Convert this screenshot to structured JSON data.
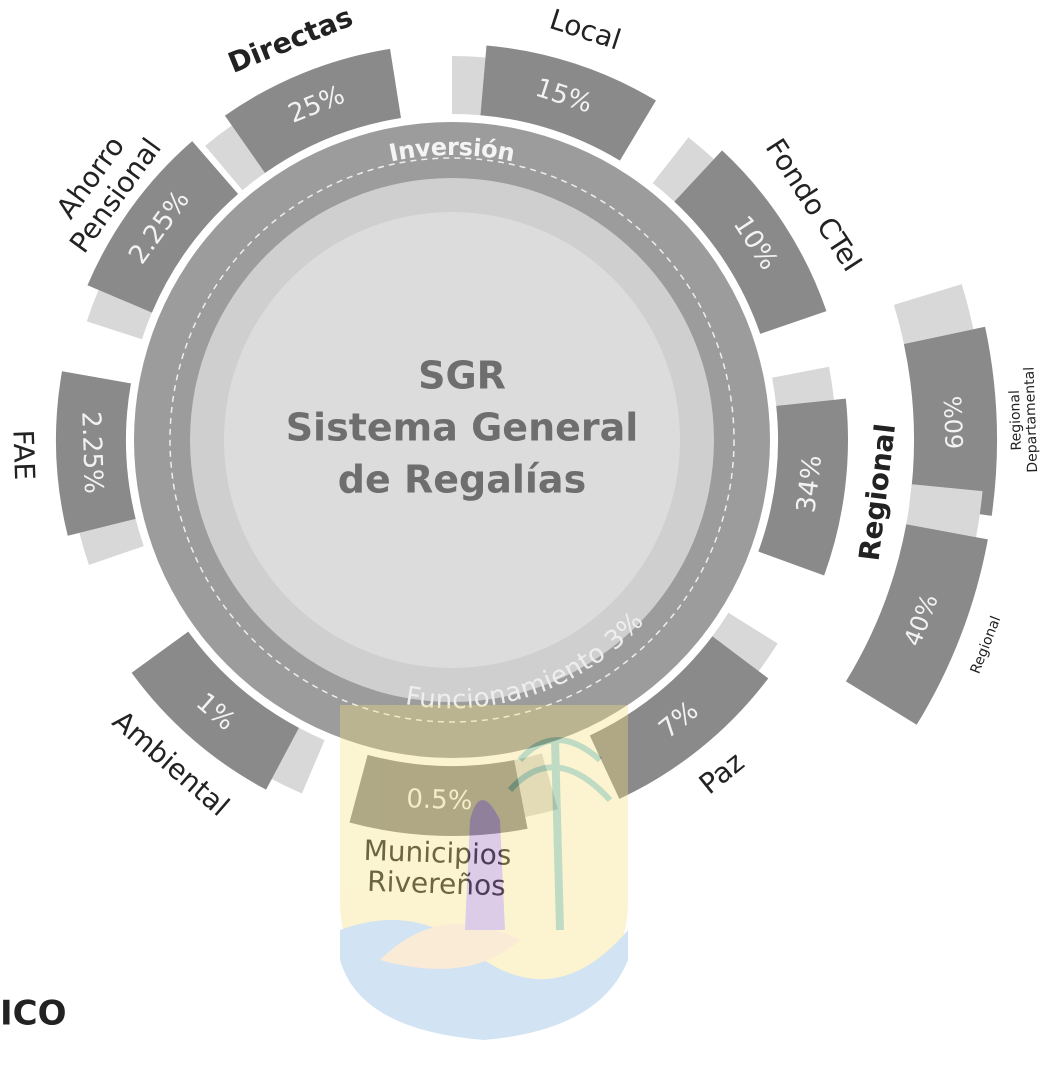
{
  "center": {
    "lines": [
      "SGR",
      "Sistema General",
      "de Regalías"
    ]
  },
  "ring": {
    "top_label": "Inversión",
    "bottom_label": "Funcionamiento 3%"
  },
  "segments": [
    {
      "label": [
        "Directas"
      ],
      "value": "25%"
    },
    {
      "label": [
        "Local"
      ],
      "value": "15%"
    },
    {
      "label": [
        "Fondo CTeI"
      ],
      "value": "10%"
    },
    {
      "label": [
        "Regional"
      ],
      "value": "34%"
    },
    {
      "label": [
        "Paz"
      ],
      "value": "7%"
    },
    {
      "label": [
        "Municipios",
        "Rivereños"
      ],
      "value": "0.5%"
    },
    {
      "label": [
        "Ambiental"
      ],
      "value": "1%"
    },
    {
      "label": [
        "FAE"
      ],
      "value": "2.25%"
    },
    {
      "label": [
        "Ahorro",
        "Pensional"
      ],
      "value": "2.25%"
    }
  ],
  "regional_split": [
    {
      "label": [
        "Regional",
        "Departamental"
      ],
      "value": "60%"
    },
    {
      "label": [
        "Regional"
      ],
      "value": "40%"
    }
  ],
  "corner_text": "ICO"
}
